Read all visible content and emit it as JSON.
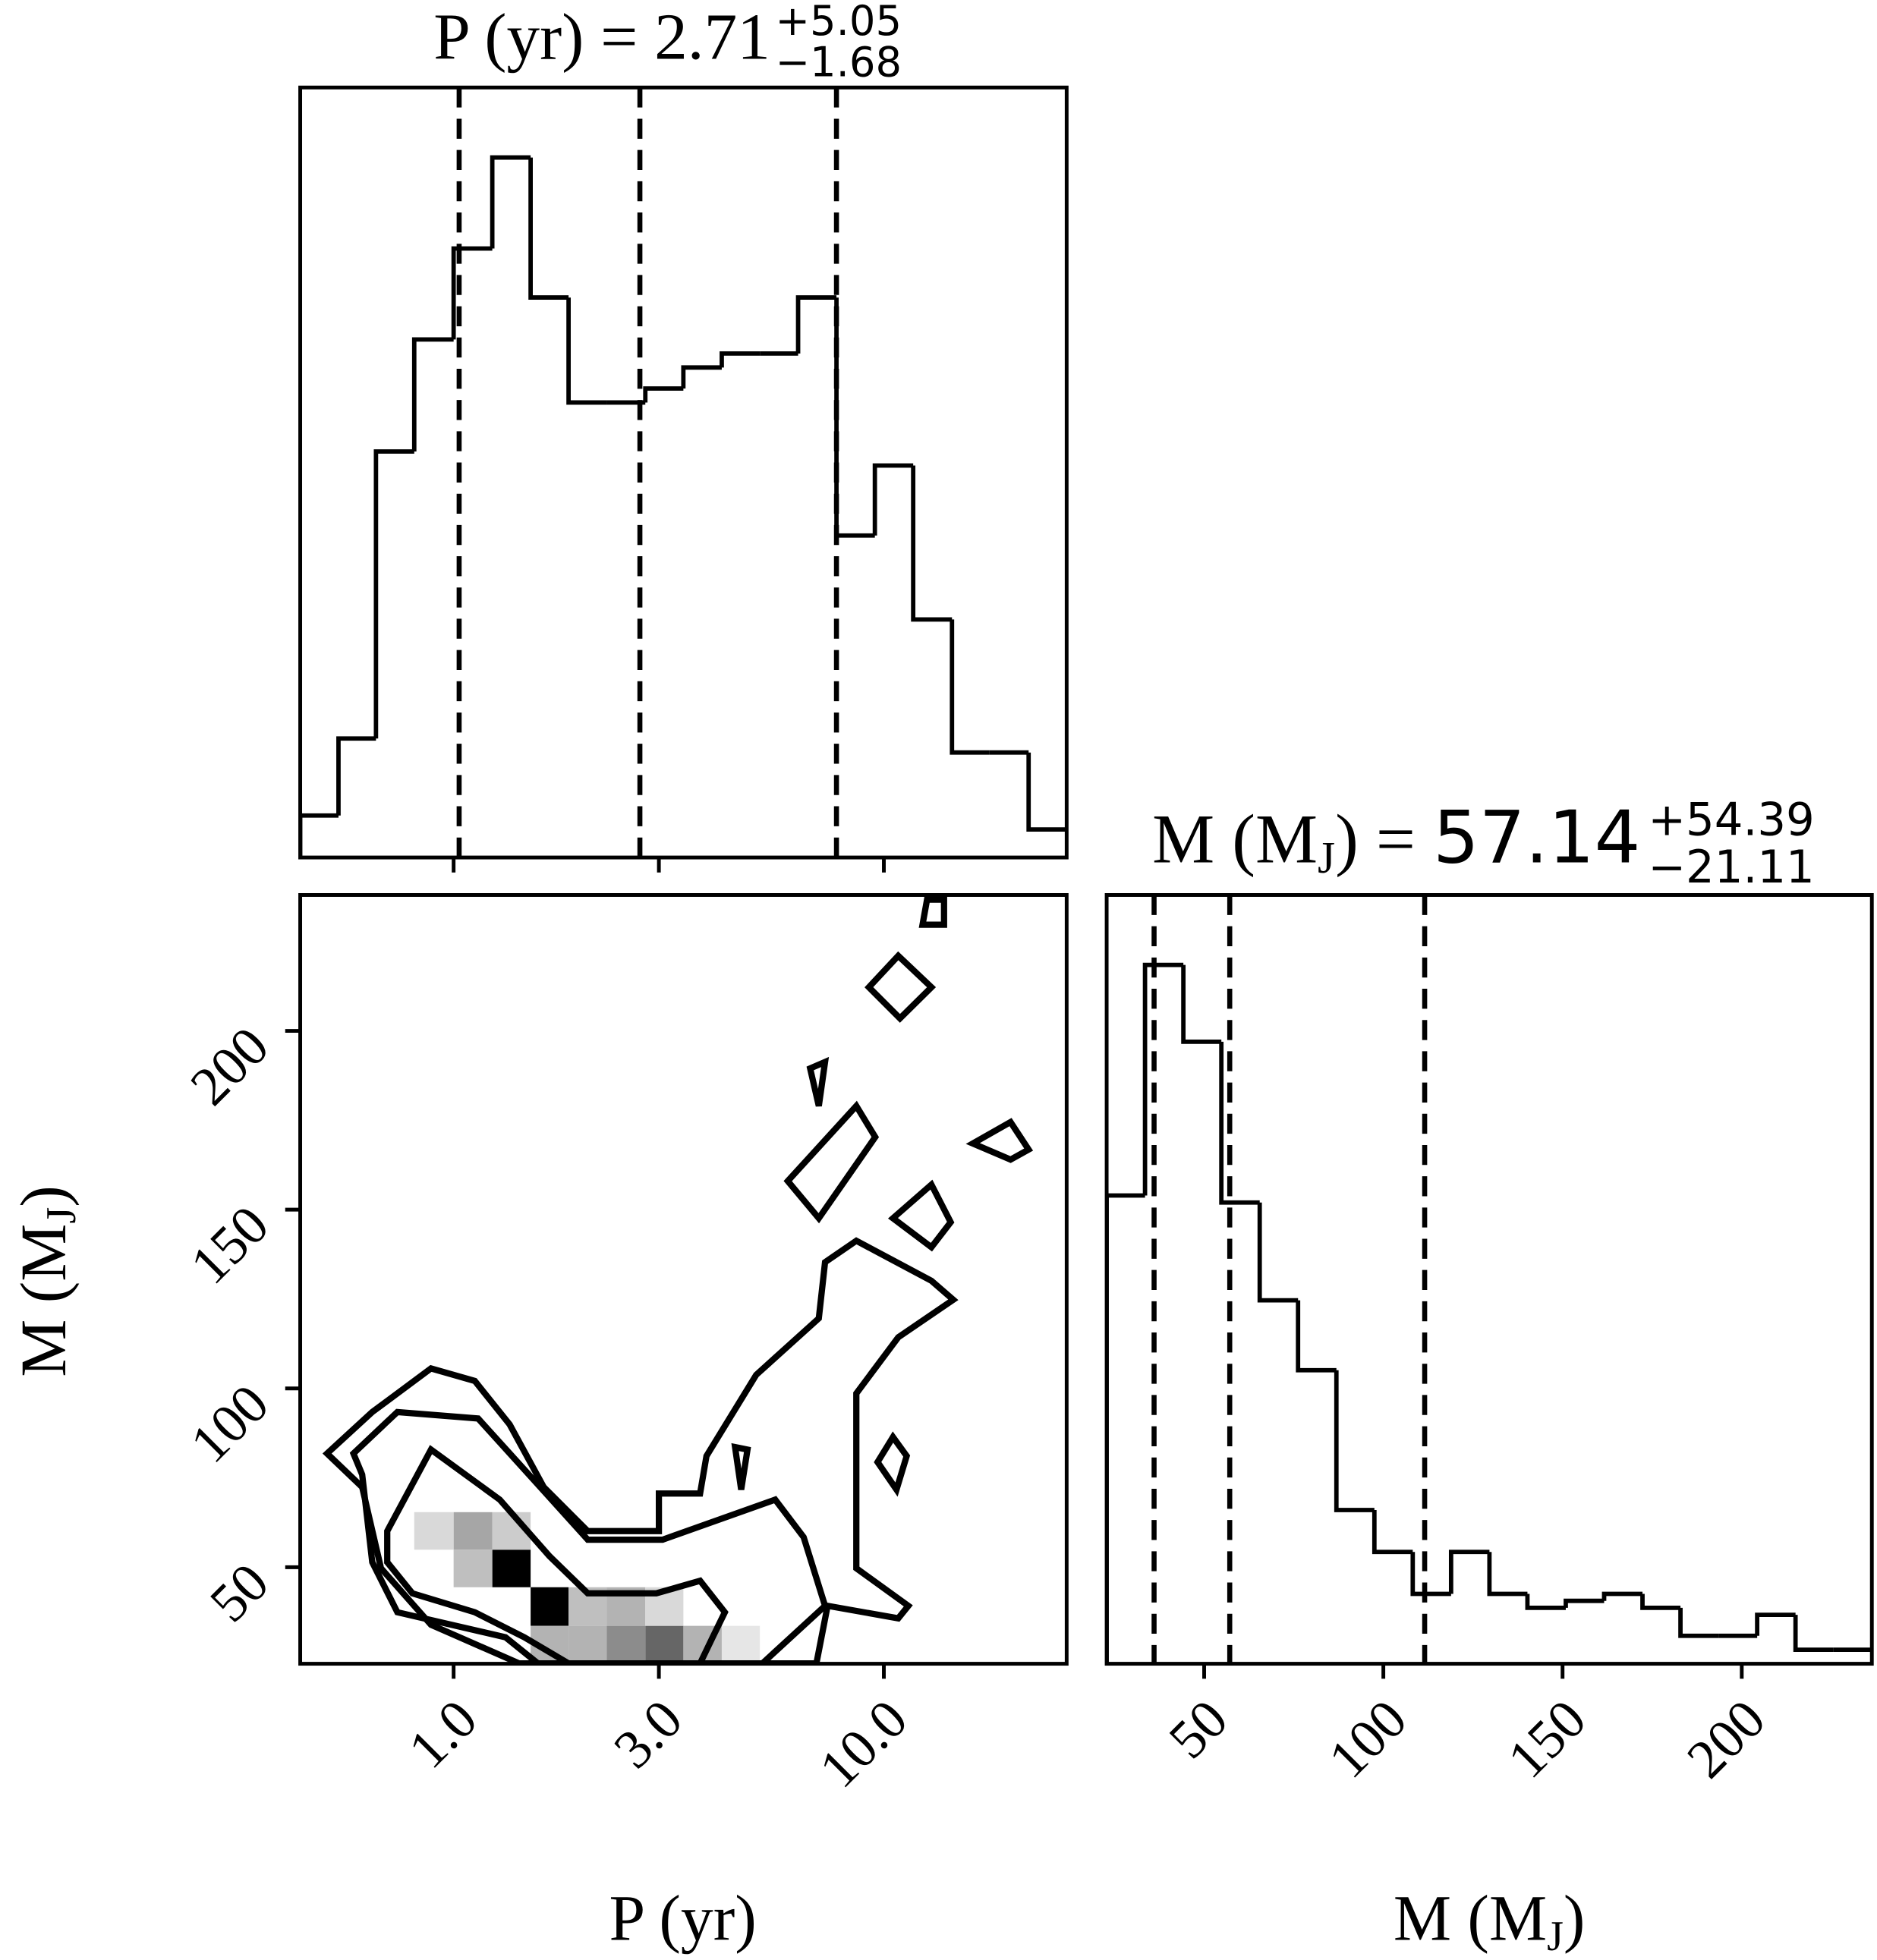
{
  "chart_data": [
    {
      "type": "histogram",
      "title": {
        "label": "P (yr) = ",
        "value": "2.71",
        "plus": "+5.05",
        "minus": "−1.68"
      },
      "xscale": "log",
      "xlim": [
        0.44,
        26.6
      ],
      "ylim": [
        0,
        110
      ],
      "bins": [
        0.44,
        0.54,
        0.66,
        0.81,
        1.0,
        1.23,
        1.51,
        1.85,
        2.27,
        2.79,
        3.42,
        4.2,
        5.15,
        6.32,
        7.76,
        9.53,
        11.7,
        14.4,
        17.6,
        21.7,
        26.6
      ],
      "values": [
        6,
        17,
        58,
        74,
        87,
        100,
        80,
        65,
        65,
        67,
        70,
        72,
        72,
        80,
        46,
        56,
        34,
        15,
        15,
        4
      ],
      "quantiles": [
        1.03,
        2.71,
        7.76
      ],
      "color": "#000000"
    },
    {
      "type": "contour",
      "xlabel": "P (yr)",
      "ylabel": {
        "label": "M (M",
        "sub": "J",
        "end": ")"
      },
      "xscale": "log",
      "xlim": [
        0.44,
        26.6
      ],
      "ylim": [
        23,
        238
      ],
      "xticks": [
        {
          "value": 1,
          "label": "1.0"
        },
        {
          "value": 3,
          "label": "3.0"
        },
        {
          "value": 10,
          "label": "10.0"
        }
      ],
      "yticks": [
        50,
        100,
        150,
        200
      ],
      "density": [
        {
          "p": [
            1.23,
            1.51
          ],
          "m": [
            44.4,
            54.9
          ],
          "value": 1
        },
        {
          "p": [
            1.51,
            1.85
          ],
          "m": [
            33.6,
            44.4
          ],
          "value": 1
        },
        {
          "p": [
            2.79,
            3.42
          ],
          "m": [
            23,
            33.6
          ],
          "value": 0.6
        },
        {
          "p": [
            2.27,
            2.79
          ],
          "m": [
            23,
            33.6
          ],
          "value": 0.45
        },
        {
          "p": [
            1.85,
            2.27
          ],
          "m": [
            23,
            33.6
          ],
          "value": 0.3
        },
        {
          "p": [
            2.27,
            2.79
          ],
          "m": [
            33.6,
            44.4
          ],
          "value": 0.3
        },
        {
          "p": [
            1.85,
            2.27
          ],
          "m": [
            33.6,
            44.4
          ],
          "value": 0.25
        },
        {
          "p": [
            1.0,
            1.23
          ],
          "m": [
            54.9,
            65.4
          ],
          "value": 0.35
        },
        {
          "p": [
            1.0,
            1.23
          ],
          "m": [
            44.4,
            54.9
          ],
          "value": 0.25
        },
        {
          "p": [
            1.23,
            1.51
          ],
          "m": [
            54.9,
            65.4
          ],
          "value": 0.2
        },
        {
          "p": [
            3.42,
            4.2
          ],
          "m": [
            23,
            33.6
          ],
          "value": 0.3
        },
        {
          "p": [
            0.81,
            1.0
          ],
          "m": [
            54.9,
            65.4
          ],
          "value": 0.15
        },
        {
          "p": [
            1.51,
            1.85
          ],
          "m": [
            23,
            33.6
          ],
          "value": 0.3
        },
        {
          "p": [
            2.79,
            3.42
          ],
          "m": [
            33.6,
            44.4
          ],
          "value": 0.15
        },
        {
          "p": [
            4.2,
            5.15
          ],
          "m": [
            23,
            33.6
          ],
          "value": 0.1
        }
      ],
      "contours": [
        {
          "x": [
            0.508,
            0.647,
            0.886,
            1.12,
            1.35,
            1.62,
            2.05,
            3.0,
            3.0,
            3.74,
            3.87,
            5.05,
            7.06,
            7.3,
            8.63,
            12.9,
            14.5,
            10.8,
            8.63,
            8.63,
            11.4,
            10.8,
            7.4,
            6.97,
            1.42,
            0.886,
            0.678,
            0.613
          ],
          "y": [
            81.8,
            93.4,
            105.6,
            102.1,
            89.9,
            72.4,
            60.1,
            60.1,
            70.6,
            70.6,
            81.1,
            103.8,
            119.6,
            135.3,
            141.3,
            130.1,
            124.8,
            114.3,
            98.6,
            49.7,
            39.2,
            35.7,
            39.2,
            23.1,
            23.1,
            33.9,
            49.7,
            72.4
          ]
        },
        {
          "x": [
            0.585,
            0.74,
            1.14,
            1.64,
            2.05,
            3.06,
            5.59,
            6.51,
            7.3,
            5.22,
            1.57,
            1.32,
            0.74,
            0.647,
            0.613
          ],
          "y": [
            81.8,
            93.4,
            91.6,
            70.6,
            57.7,
            57.7,
            68.9,
            58.4,
            39.2,
            23.1,
            23.1,
            30.4,
            37.4,
            51.4,
            75.9
          ]
        },
        {
          "x": [
            0.701,
            0.886,
            1.28,
            1.67,
            2.05,
            2.96,
            3.74,
            4.27,
            4.0,
            3.74,
            1.85,
            1.46,
            1.12,
            0.802,
            0.701
          ],
          "y": [
            60.1,
            82.9,
            68.9,
            53.1,
            42.7,
            42.7,
            46.2,
            37.4,
            30.4,
            23.1,
            23.1,
            30.4,
            37.4,
            42.7,
            51.4
          ]
        },
        {
          "x": [
            5.98,
            8.63,
            9.55,
            7.06
          ],
          "y": [
            158.0,
            179.0,
            170.3,
            147.6
          ]
        },
        {
          "x": [
            10.5,
            12.9,
            14.3,
            12.9
          ],
          "y": [
            147.6,
            157.0,
            146.5,
            139.5
          ]
        },
        {
          "x": [
            9.23,
            10.8,
            12.9,
            10.9
          ],
          "y": [
            212.2,
            221.0,
            212.2,
            203.5
          ]
        },
        {
          "x": [
            16.1,
            19.7,
            21.7,
            19.7
          ],
          "y": [
            168.5,
            174.5,
            166.8,
            164.0
          ]
        },
        {
          "x": [
            6.74,
            7.3,
            7.06
          ],
          "y": [
            189.5,
            191.3,
            179.0
          ]
        },
        {
          "x": [
            9.67,
            10.5,
            11.3,
            10.7
          ],
          "y": [
            79.4,
            86.4,
            81.1,
            71.7
          ]
        },
        {
          "x": [
            4.51,
            4.82,
            4.66
          ],
          "y": [
            83.6,
            82.9,
            71.7
          ]
        },
        {
          "x": [
            12.3,
            12.6,
            13.8,
            13.8
          ],
          "y": [
            229.7,
            236.7,
            236.7,
            229.7
          ]
        }
      ],
      "color": "#000000"
    },
    {
      "type": "histogram",
      "title": {
        "label": "M (M",
        "sub": "J",
        "end": ") = ",
        "value": "57.14",
        "plus": "+54.39",
        "minus": "−21.11"
      },
      "xlabel": {
        "label": "M (M",
        "sub": "J",
        "end": ")"
      },
      "xlim": [
        22.8,
        236.3
      ],
      "ylim": [
        0,
        110
      ],
      "xticks": [
        50,
        100,
        150,
        200
      ],
      "bins": [
        22.8,
        33.5,
        44.2,
        54.8,
        65.5,
        76.2,
        86.9,
        97.5,
        108.2,
        118.9,
        129.6,
        140.2,
        150.9,
        161.6,
        172.3,
        182.9,
        193.6,
        204.3,
        215.0,
        225.6,
        236.3
      ],
      "values": [
        67,
        100,
        89,
        66,
        52,
        42,
        22,
        16,
        10,
        16,
        10,
        8,
        9,
        10,
        8,
        4,
        4,
        7,
        2,
        2
      ],
      "quantiles": [
        36.03,
        57.14,
        111.53
      ],
      "color": "#000000"
    }
  ]
}
